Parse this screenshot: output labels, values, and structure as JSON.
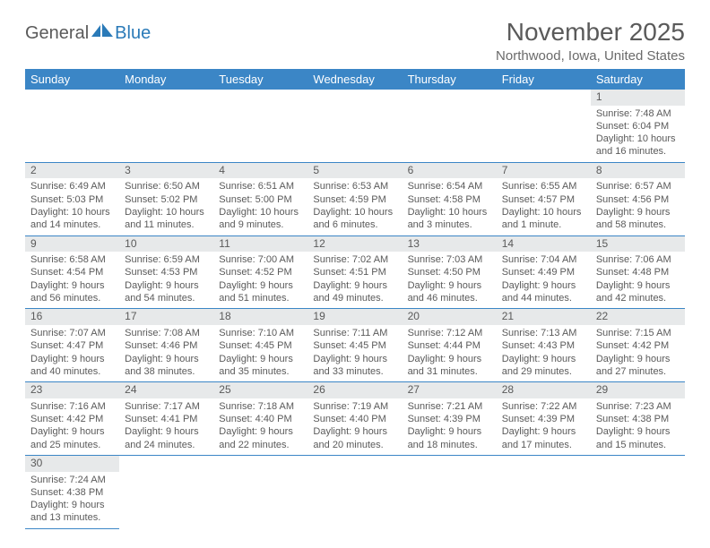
{
  "brand": {
    "general": "General",
    "blue": "Blue"
  },
  "title": "November 2025",
  "location": "Northwood, Iowa, United States",
  "colors": {
    "header_bg": "#3b86c6",
    "header_text": "#ffffff",
    "daynum_bg": "#e7e9ea",
    "text": "#5a5a5a",
    "rule": "#3b86c6",
    "page_bg": "#ffffff"
  },
  "weekdays": [
    "Sunday",
    "Monday",
    "Tuesday",
    "Wednesday",
    "Thursday",
    "Friday",
    "Saturday"
  ],
  "weeks": [
    [
      null,
      null,
      null,
      null,
      null,
      null,
      {
        "n": "1",
        "sr": "Sunrise: 7:48 AM",
        "ss": "Sunset: 6:04 PM",
        "dl1": "Daylight: 10 hours",
        "dl2": "and 16 minutes."
      }
    ],
    [
      {
        "n": "2",
        "sr": "Sunrise: 6:49 AM",
        "ss": "Sunset: 5:03 PM",
        "dl1": "Daylight: 10 hours",
        "dl2": "and 14 minutes."
      },
      {
        "n": "3",
        "sr": "Sunrise: 6:50 AM",
        "ss": "Sunset: 5:02 PM",
        "dl1": "Daylight: 10 hours",
        "dl2": "and 11 minutes."
      },
      {
        "n": "4",
        "sr": "Sunrise: 6:51 AM",
        "ss": "Sunset: 5:00 PM",
        "dl1": "Daylight: 10 hours",
        "dl2": "and 9 minutes."
      },
      {
        "n": "5",
        "sr": "Sunrise: 6:53 AM",
        "ss": "Sunset: 4:59 PM",
        "dl1": "Daylight: 10 hours",
        "dl2": "and 6 minutes."
      },
      {
        "n": "6",
        "sr": "Sunrise: 6:54 AM",
        "ss": "Sunset: 4:58 PM",
        "dl1": "Daylight: 10 hours",
        "dl2": "and 3 minutes."
      },
      {
        "n": "7",
        "sr": "Sunrise: 6:55 AM",
        "ss": "Sunset: 4:57 PM",
        "dl1": "Daylight: 10 hours",
        "dl2": "and 1 minute."
      },
      {
        "n": "8",
        "sr": "Sunrise: 6:57 AM",
        "ss": "Sunset: 4:56 PM",
        "dl1": "Daylight: 9 hours",
        "dl2": "and 58 minutes."
      }
    ],
    [
      {
        "n": "9",
        "sr": "Sunrise: 6:58 AM",
        "ss": "Sunset: 4:54 PM",
        "dl1": "Daylight: 9 hours",
        "dl2": "and 56 minutes."
      },
      {
        "n": "10",
        "sr": "Sunrise: 6:59 AM",
        "ss": "Sunset: 4:53 PM",
        "dl1": "Daylight: 9 hours",
        "dl2": "and 54 minutes."
      },
      {
        "n": "11",
        "sr": "Sunrise: 7:00 AM",
        "ss": "Sunset: 4:52 PM",
        "dl1": "Daylight: 9 hours",
        "dl2": "and 51 minutes."
      },
      {
        "n": "12",
        "sr": "Sunrise: 7:02 AM",
        "ss": "Sunset: 4:51 PM",
        "dl1": "Daylight: 9 hours",
        "dl2": "and 49 minutes."
      },
      {
        "n": "13",
        "sr": "Sunrise: 7:03 AM",
        "ss": "Sunset: 4:50 PM",
        "dl1": "Daylight: 9 hours",
        "dl2": "and 46 minutes."
      },
      {
        "n": "14",
        "sr": "Sunrise: 7:04 AM",
        "ss": "Sunset: 4:49 PM",
        "dl1": "Daylight: 9 hours",
        "dl2": "and 44 minutes."
      },
      {
        "n": "15",
        "sr": "Sunrise: 7:06 AM",
        "ss": "Sunset: 4:48 PM",
        "dl1": "Daylight: 9 hours",
        "dl2": "and 42 minutes."
      }
    ],
    [
      {
        "n": "16",
        "sr": "Sunrise: 7:07 AM",
        "ss": "Sunset: 4:47 PM",
        "dl1": "Daylight: 9 hours",
        "dl2": "and 40 minutes."
      },
      {
        "n": "17",
        "sr": "Sunrise: 7:08 AM",
        "ss": "Sunset: 4:46 PM",
        "dl1": "Daylight: 9 hours",
        "dl2": "and 38 minutes."
      },
      {
        "n": "18",
        "sr": "Sunrise: 7:10 AM",
        "ss": "Sunset: 4:45 PM",
        "dl1": "Daylight: 9 hours",
        "dl2": "and 35 minutes."
      },
      {
        "n": "19",
        "sr": "Sunrise: 7:11 AM",
        "ss": "Sunset: 4:45 PM",
        "dl1": "Daylight: 9 hours",
        "dl2": "and 33 minutes."
      },
      {
        "n": "20",
        "sr": "Sunrise: 7:12 AM",
        "ss": "Sunset: 4:44 PM",
        "dl1": "Daylight: 9 hours",
        "dl2": "and 31 minutes."
      },
      {
        "n": "21",
        "sr": "Sunrise: 7:13 AM",
        "ss": "Sunset: 4:43 PM",
        "dl1": "Daylight: 9 hours",
        "dl2": "and 29 minutes."
      },
      {
        "n": "22",
        "sr": "Sunrise: 7:15 AM",
        "ss": "Sunset: 4:42 PM",
        "dl1": "Daylight: 9 hours",
        "dl2": "and 27 minutes."
      }
    ],
    [
      {
        "n": "23",
        "sr": "Sunrise: 7:16 AM",
        "ss": "Sunset: 4:42 PM",
        "dl1": "Daylight: 9 hours",
        "dl2": "and 25 minutes."
      },
      {
        "n": "24",
        "sr": "Sunrise: 7:17 AM",
        "ss": "Sunset: 4:41 PM",
        "dl1": "Daylight: 9 hours",
        "dl2": "and 24 minutes."
      },
      {
        "n": "25",
        "sr": "Sunrise: 7:18 AM",
        "ss": "Sunset: 4:40 PM",
        "dl1": "Daylight: 9 hours",
        "dl2": "and 22 minutes."
      },
      {
        "n": "26",
        "sr": "Sunrise: 7:19 AM",
        "ss": "Sunset: 4:40 PM",
        "dl1": "Daylight: 9 hours",
        "dl2": "and 20 minutes."
      },
      {
        "n": "27",
        "sr": "Sunrise: 7:21 AM",
        "ss": "Sunset: 4:39 PM",
        "dl1": "Daylight: 9 hours",
        "dl2": "and 18 minutes."
      },
      {
        "n": "28",
        "sr": "Sunrise: 7:22 AM",
        "ss": "Sunset: 4:39 PM",
        "dl1": "Daylight: 9 hours",
        "dl2": "and 17 minutes."
      },
      {
        "n": "29",
        "sr": "Sunrise: 7:23 AM",
        "ss": "Sunset: 4:38 PM",
        "dl1": "Daylight: 9 hours",
        "dl2": "and 15 minutes."
      }
    ],
    [
      {
        "n": "30",
        "sr": "Sunrise: 7:24 AM",
        "ss": "Sunset: 4:38 PM",
        "dl1": "Daylight: 9 hours",
        "dl2": "and 13 minutes."
      },
      null,
      null,
      null,
      null,
      null,
      null
    ]
  ]
}
